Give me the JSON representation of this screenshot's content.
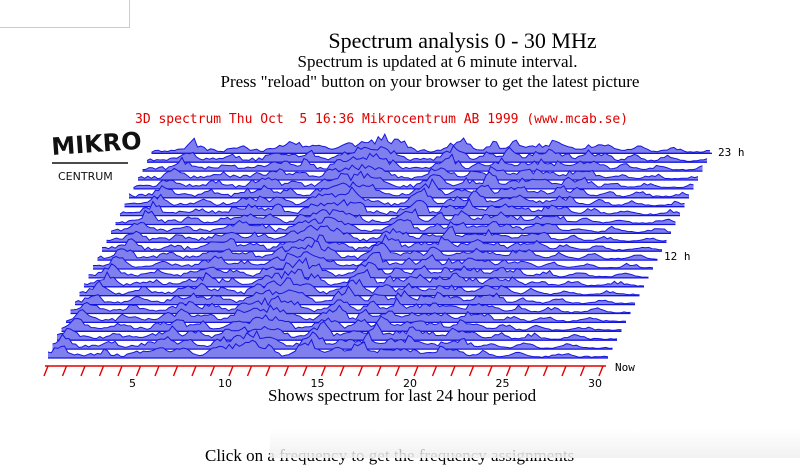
{
  "header": {
    "title": "Spectrum analysis 0 - 30 MHz",
    "update_note": "Spectrum is updated at 6 minute interval.",
    "reload_note": "Press \"reload\" button on your browser to get the latest picture"
  },
  "spectrum_image": {
    "banner": "3D spectrum Thu Oct  5 16:36 Mikrocentrum AB 1999 (www.mcab.se)",
    "logo_top": "MIKRO",
    "logo_bottom": "CENTRUM",
    "row_labels": {
      "top": "23 h",
      "middle": "12 h",
      "bottom": "Now"
    },
    "axis_ticks": [
      "5",
      "10",
      "15",
      "20",
      "25",
      "30"
    ],
    "colors": {
      "trace": "#1515e0",
      "banner": "#e00000",
      "ticks": "#e00000"
    }
  },
  "caption": "Shows spectrum for last 24 hour period",
  "bottom_text": "Click on a frequency to get the frequency assignments"
}
